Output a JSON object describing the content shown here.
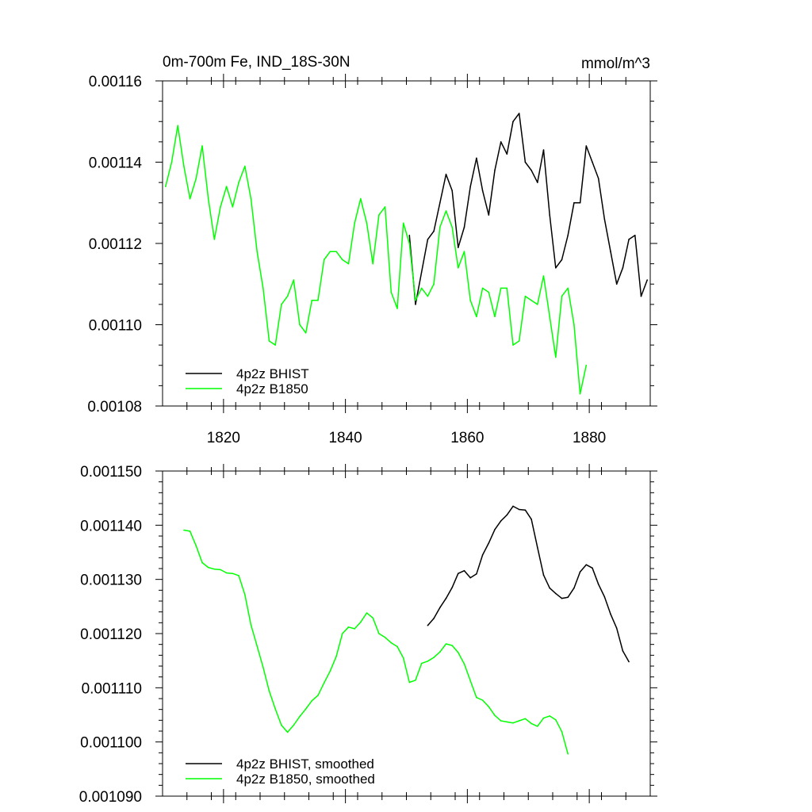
{
  "chart_data": [
    {
      "type": "line",
      "title": "0m-700m Fe, IND_18S-30N",
      "units": "mmol/m^3",
      "xlabel": "",
      "ylabel": "",
      "xlim": [
        1810,
        1890
      ],
      "ylim": [
        0.00108,
        0.00116
      ],
      "x_ticks": [
        1820,
        1840,
        1860,
        1880
      ],
      "x_tick_labels": [
        "1820",
        "1840",
        "1860",
        "1880"
      ],
      "y_ticks": [
        0.00108,
        0.0011,
        0.00112,
        0.00114,
        0.00116
      ],
      "y_tick_labels": [
        "0.00108",
        "0.00110",
        "0.00112",
        "0.00114",
        "0.00116"
      ],
      "grid": false,
      "legend_position": "bottom-left",
      "series": [
        {
          "name": "4p2z BHIST",
          "color": "#000000",
          "x": [
            1850.5,
            1851.5,
            1852.5,
            1853.5,
            1854.5,
            1855.5,
            1856.5,
            1857.5,
            1858.5,
            1859.5,
            1860.5,
            1861.5,
            1862.5,
            1863.5,
            1864.5,
            1865.5,
            1866.5,
            1867.5,
            1868.5,
            1869.5,
            1870.5,
            1871.5,
            1872.5,
            1873.5,
            1874.5,
            1875.5,
            1876.5,
            1877.5,
            1878.5,
            1879.5,
            1880.5,
            1881.5,
            1882.5,
            1883.5,
            1884.5,
            1885.5,
            1886.5,
            1887.5,
            1888.5,
            1889.5
          ],
          "values": [
            0.001122,
            0.001105,
            0.001113,
            0.001121,
            0.001123,
            0.00113,
            0.001137,
            0.001133,
            0.001119,
            0.001124,
            0.001134,
            0.001141,
            0.001133,
            0.001127,
            0.001138,
            0.001145,
            0.001142,
            0.00115,
            0.001152,
            0.00114,
            0.001138,
            0.001135,
            0.001143,
            0.001127,
            0.001114,
            0.001116,
            0.001122,
            0.00113,
            0.00113,
            0.001144,
            0.00114,
            0.001136,
            0.001126,
            0.001118,
            0.00111,
            0.001114,
            0.001121,
            0.001122,
            0.001107,
            0.001111
          ]
        },
        {
          "name": "4p2z B1850",
          "color": "#00ff00",
          "x": [
            1810.5,
            1811.5,
            1812.5,
            1813.5,
            1814.5,
            1815.5,
            1816.5,
            1817.5,
            1818.5,
            1819.5,
            1820.5,
            1821.5,
            1822.5,
            1823.5,
            1824.5,
            1825.5,
            1826.5,
            1827.5,
            1828.5,
            1829.5,
            1830.5,
            1831.5,
            1832.5,
            1833.5,
            1834.5,
            1835.5,
            1836.5,
            1837.5,
            1838.5,
            1839.5,
            1840.5,
            1841.5,
            1842.5,
            1843.5,
            1844.5,
            1845.5,
            1846.5,
            1847.5,
            1848.5,
            1849.5,
            1850.5,
            1851.5,
            1852.5,
            1853.5,
            1854.5,
            1855.5,
            1856.5,
            1857.5,
            1858.5,
            1859.5,
            1860.5,
            1861.5,
            1862.5,
            1863.5,
            1864.5,
            1865.5,
            1866.5,
            1867.5,
            1868.5,
            1869.5,
            1870.5,
            1871.5,
            1872.5,
            1873.5,
            1874.5,
            1875.5,
            1876.5,
            1877.5,
            1878.5,
            1879.5
          ],
          "values": [
            0.001134,
            0.00114,
            0.001149,
            0.001139,
            0.001131,
            0.001136,
            0.001144,
            0.001131,
            0.001121,
            0.001129,
            0.001134,
            0.001129,
            0.001135,
            0.001139,
            0.001131,
            0.001118,
            0.001109,
            0.001096,
            0.001095,
            0.001105,
            0.001107,
            0.001111,
            0.0011,
            0.001098,
            0.001106,
            0.001106,
            0.001116,
            0.001118,
            0.001118,
            0.001116,
            0.001115,
            0.001125,
            0.001131,
            0.001125,
            0.001115,
            0.001127,
            0.001129,
            0.001108,
            0.001104,
            0.001125,
            0.00112,
            0.001106,
            0.001109,
            0.001107,
            0.00111,
            0.001124,
            0.001128,
            0.001124,
            0.001114,
            0.001118,
            0.001106,
            0.001102,
            0.001109,
            0.001108,
            0.001102,
            0.001109,
            0.001109,
            0.001095,
            0.001096,
            0.001107,
            0.001106,
            0.001105,
            0.001112,
            0.001102,
            0.001092,
            0.001107,
            0.001109,
            0.0011,
            0.001083,
            0.00109
          ]
        }
      ]
    },
    {
      "type": "line",
      "title": "",
      "xlabel": "",
      "ylabel": "",
      "xlim": [
        1810,
        1890
      ],
      "ylim": [
        0.00109,
        0.00115
      ],
      "x_ticks": [
        1820,
        1840,
        1860,
        1880
      ],
      "x_tick_labels": [],
      "y_ticks": [
        0.00109,
        0.0011,
        0.00111,
        0.00112,
        0.00113,
        0.00114,
        0.00115
      ],
      "y_tick_labels": [
        "0.001090",
        "0.001100",
        "0.001110",
        "0.001120",
        "0.001130",
        "0.001140",
        "0.001150"
      ],
      "grid": false,
      "legend_position": "bottom-left",
      "series": [
        {
          "name": "4p2z BHIST, smoothed",
          "color": "#000000",
          "x": [
            1853.5,
            1854.5,
            1855.5,
            1856.5,
            1857.5,
            1858.5,
            1859.5,
            1860.5,
            1861.5,
            1862.5,
            1863.5,
            1864.5,
            1865.5,
            1866.5,
            1867.5,
            1868.5,
            1869.5,
            1870.5,
            1871.5,
            1872.5,
            1873.5,
            1874.5,
            1875.5,
            1876.5,
            1877.5,
            1878.5,
            1879.5,
            1880.5,
            1881.5,
            1882.5,
            1883.5,
            1884.5,
            1885.5,
            1886.5
          ],
          "values": [
            0.0011215,
            0.0011228,
            0.0011248,
            0.0011265,
            0.0011285,
            0.0011311,
            0.0011316,
            0.0011303,
            0.001131,
            0.0011345,
            0.0011367,
            0.0011392,
            0.0011408,
            0.0011419,
            0.0011435,
            0.0011429,
            0.0011428,
            0.0011411,
            0.0011359,
            0.0011308,
            0.0011284,
            0.0011274,
            0.0011265,
            0.0011267,
            0.0011284,
            0.0011314,
            0.0011327,
            0.0011321,
            0.0011291,
            0.0011268,
            0.0011236,
            0.001121,
            0.0011168,
            0.0011148
          ]
        },
        {
          "name": "4p2z B1850, smoothed",
          "color": "#00ff00",
          "x": [
            1813.5,
            1814.5,
            1815.5,
            1816.5,
            1817.5,
            1818.5,
            1819.5,
            1820.5,
            1821.5,
            1822.5,
            1823.5,
            1824.5,
            1825.5,
            1826.5,
            1827.5,
            1828.5,
            1829.5,
            1830.5,
            1831.5,
            1832.5,
            1833.5,
            1834.5,
            1835.5,
            1836.5,
            1837.5,
            1838.5,
            1839.5,
            1840.5,
            1841.5,
            1842.5,
            1843.5,
            1844.5,
            1845.5,
            1846.5,
            1847.5,
            1848.5,
            1849.5,
            1850.5,
            1851.5,
            1852.5,
            1853.5,
            1854.5,
            1855.5,
            1856.5,
            1857.5,
            1858.5,
            1859.5,
            1860.5,
            1861.5,
            1862.5,
            1863.5,
            1864.5,
            1865.5,
            1866.5,
            1867.5,
            1868.5,
            1869.5,
            1870.5,
            1871.5,
            1872.5,
            1873.5,
            1874.5,
            1875.5,
            1876.5
          ],
          "values": [
            0.0011391,
            0.0011389,
            0.0011362,
            0.0011331,
            0.0011322,
            0.0011319,
            0.0011318,
            0.0011312,
            0.0011311,
            0.0011307,
            0.0011272,
            0.0011216,
            0.0011177,
            0.0011138,
            0.0011094,
            0.0011061,
            0.0011031,
            0.0011018,
            0.0011031,
            0.0011047,
            0.0011061,
            0.0011076,
            0.0011086,
            0.0011109,
            0.0011131,
            0.0011158,
            0.00112,
            0.0011212,
            0.0011209,
            0.0011221,
            0.0011238,
            0.0011229,
            0.00112,
            0.0011193,
            0.0011183,
            0.0011176,
            0.0011155,
            0.001111,
            0.0011114,
            0.0011145,
            0.0011149,
            0.0011156,
            0.0011166,
            0.0011181,
            0.0011178,
            0.0011165,
            0.0011144,
            0.0011113,
            0.0011082,
            0.0011077,
            0.0011065,
            0.0011049,
            0.0011039,
            0.0011037,
            0.0011035,
            0.0011039,
            0.0011043,
            0.0011034,
            0.0011029,
            0.0011044,
            0.0011048,
            0.0011041,
            0.0011019,
            0.0010978
          ]
        }
      ]
    }
  ]
}
